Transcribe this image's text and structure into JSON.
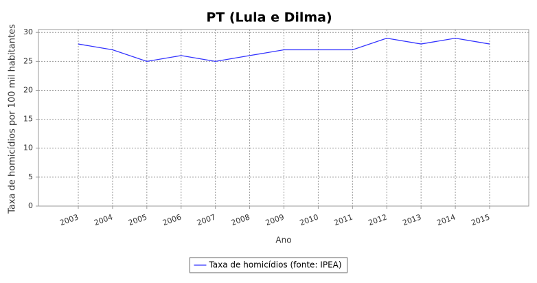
{
  "chart_data": {
    "type": "line",
    "title": "PT (Lula e Dilma)",
    "x_label": "Ano",
    "y_label": "Taxa de homicídios por 100 mil habitantes",
    "categories": [
      "2003",
      "2004",
      "2005",
      "2006",
      "2007",
      "2008",
      "2009",
      "2010",
      "2011",
      "2012",
      "2013",
      "2014",
      "2015"
    ],
    "series": [
      {
        "name": "Taxa de homicídios (fonte: IPEA)",
        "color": "#3333ff",
        "values": [
          28,
          27,
          25,
          26,
          25,
          26,
          27,
          27,
          27,
          29,
          28,
          29,
          28
        ]
      }
    ],
    "ylim": [
      0,
      30.5
    ],
    "yticks": [
      0,
      5,
      10,
      15,
      20,
      25,
      30
    ],
    "grid": true,
    "legend": "bottom"
  }
}
